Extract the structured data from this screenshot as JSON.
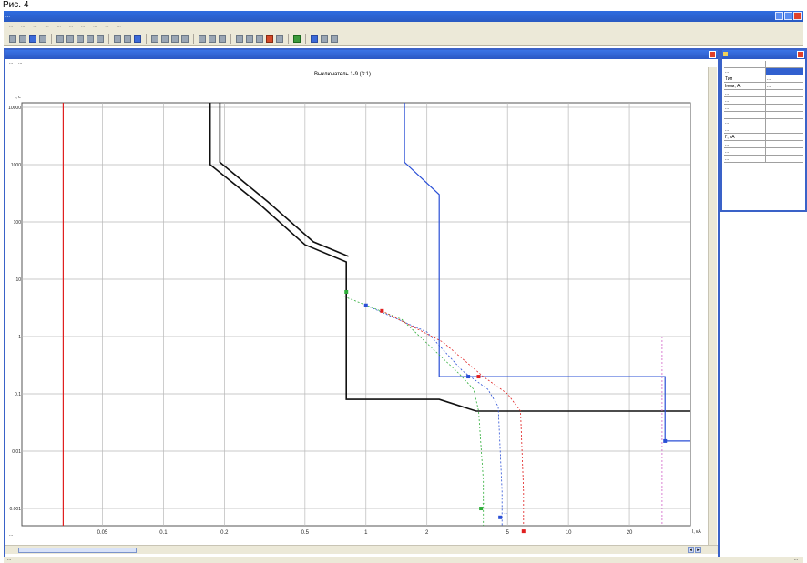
{
  "figure_caption": "Рис. 4",
  "app": {
    "title": "...",
    "menu": [
      "...",
      "...",
      "...",
      "...",
      "...",
      "...",
      "...",
      "...",
      "...",
      "..."
    ],
    "status_left": "...",
    "status_right": "..."
  },
  "chart_window": {
    "title": "...",
    "menu": [
      "...",
      "..."
    ],
    "status": "..."
  },
  "side_panel": {
    "title": "...",
    "rows": [
      {
        "key": "...",
        "value": "..."
      },
      {
        "key": "...",
        "value": ""
      },
      {
        "key": "Тип",
        "value": "..."
      },
      {
        "key": "Iном, А",
        "value": "..."
      },
      {
        "key": "...",
        "value": ""
      },
      {
        "key": "...",
        "value": ""
      },
      {
        "key": "...",
        "value": ""
      },
      {
        "key": "...",
        "value": ""
      },
      {
        "key": "...",
        "value": ""
      },
      {
        "key": "...",
        "value": ""
      },
      {
        "key": "I', кА",
        "value": ""
      },
      {
        "key": "...",
        "value": ""
      },
      {
        "key": "...",
        "value": ""
      },
      {
        "key": "...",
        "value": ""
      }
    ]
  },
  "colors": {
    "window_blue": "#2f63d6",
    "curve_black": "#111111",
    "curve_blue": "#2a4fd6",
    "curve_red": "#e02020",
    "curve_green": "#2fae3a",
    "curve_magenta": "#d060c8"
  },
  "chart_data": {
    "type": "line",
    "title": "Выключатель 1-9 (3:1)",
    "xlabel": "I, кА",
    "ylabel": "t, с",
    "x_scale": "log",
    "y_scale": "log",
    "xlim": [
      0.02,
      40
    ],
    "ylim": [
      0.0005,
      12000
    ],
    "x_ticks": [
      {
        "v": 0.05,
        "label": "0.05"
      },
      {
        "v": 0.1,
        "label": "0.1"
      },
      {
        "v": 0.2,
        "label": "0.2"
      },
      {
        "v": 0.5,
        "label": "0.5"
      },
      {
        "v": 1,
        "label": "1"
      },
      {
        "v": 2,
        "label": "2"
      },
      {
        "v": 5,
        "label": "5"
      },
      {
        "v": 10,
        "label": "10"
      },
      {
        "v": 20,
        "label": "20"
      }
    ],
    "y_ticks": [
      {
        "v": 10000,
        "label": "10000"
      },
      {
        "v": 1000,
        "label": "1000"
      },
      {
        "v": 100,
        "label": "100"
      },
      {
        "v": 10,
        "label": "10"
      },
      {
        "v": 1,
        "label": "1"
      },
      {
        "v": 0.1,
        "label": "0.1"
      },
      {
        "v": 0.01,
        "label": "0.01"
      },
      {
        "v": 0.001,
        "label": "0.001"
      }
    ],
    "grid": true,
    "series": [
      {
        "color": "#111111",
        "width": 1.6,
        "points": [
          [
            0.17,
            12000
          ],
          [
            0.17,
            1000
          ],
          [
            0.3,
            200
          ],
          [
            0.5,
            40
          ],
          [
            0.8,
            20
          ],
          [
            0.8,
            0.08
          ],
          [
            2.3,
            0.08
          ],
          [
            3.5,
            0.05
          ],
          [
            40,
            0.05
          ]
        ]
      },
      {
        "color": "#111111",
        "width": 1.6,
        "points": [
          [
            0.19,
            12000
          ],
          [
            0.19,
            1100
          ],
          [
            0.33,
            220
          ],
          [
            0.55,
            45
          ],
          [
            0.82,
            25
          ]
        ]
      },
      {
        "color": "#2a4fd6",
        "width": 1.2,
        "points": [
          [
            1.55,
            12000
          ],
          [
            1.55,
            1100
          ],
          [
            2.3,
            300
          ],
          [
            2.3,
            0.2
          ],
          [
            30,
            0.2
          ],
          [
            30,
            0.015
          ],
          [
            40,
            0.015
          ]
        ]
      },
      {
        "color": "#e02020",
        "width": 1.2,
        "points": [
          [
            0.032,
            12000
          ],
          [
            0.032,
            0.0005
          ]
        ]
      },
      {
        "color": "#d060c8",
        "width": 0.8,
        "dash": "2,2",
        "points": [
          [
            29,
            1
          ],
          [
            29,
            0.0005
          ]
        ]
      },
      {
        "color": "#2fae3a",
        "width": 0.8,
        "dash": "2,2",
        "points": [
          [
            0.78,
            5
          ],
          [
            1.5,
            2
          ],
          [
            2.9,
            0.22
          ],
          [
            3.4,
            0.12
          ],
          [
            3.6,
            0.05
          ],
          [
            3.8,
            0.003
          ],
          [
            3.8,
            0.0005
          ]
        ]
      },
      {
        "color": "#2a4fd6",
        "width": 0.8,
        "dash": "2,2",
        "points": [
          [
            1,
            3.5
          ],
          [
            2,
            1.2
          ],
          [
            3,
            0.25
          ],
          [
            4,
            0.12
          ],
          [
            4.5,
            0.06
          ],
          [
            4.7,
            0.002
          ],
          [
            4.7,
            0.0005
          ]
        ]
      },
      {
        "color": "#e02020",
        "width": 0.8,
        "dash": "2,2",
        "points": [
          [
            1.2,
            2.8
          ],
          [
            2.4,
            0.8
          ],
          [
            3.8,
            0.2
          ],
          [
            5,
            0.1
          ],
          [
            5.8,
            0.05
          ],
          [
            6,
            0.002
          ],
          [
            6,
            0.0005
          ]
        ]
      }
    ],
    "markers": [
      {
        "x": 0.8,
        "y": 6,
        "color": "#2fae3a"
      },
      {
        "x": 1,
        "y": 3.5,
        "color": "#2a4fd6"
      },
      {
        "x": 1.2,
        "y": 2.8,
        "color": "#e02020"
      },
      {
        "x": 3.2,
        "y": 0.2,
        "color": "#2a4fd6"
      },
      {
        "x": 3.6,
        "y": 0.2,
        "color": "#e02020"
      },
      {
        "x": 3.7,
        "y": 0.001,
        "color": "#2fae3a"
      },
      {
        "x": 4.6,
        "y": 0.0007,
        "color": "#2a4fd6"
      },
      {
        "x": 6,
        "y": 0.0004,
        "color": "#e02020"
      },
      {
        "x": 30,
        "y": 0.015,
        "color": "#2a4fd6"
      }
    ],
    "annotations": [
      {
        "x": 3.75,
        "y": 0.0012,
        "text": "...",
        "color": "#2fae3a"
      },
      {
        "x": 4.8,
        "y": 0.0008,
        "text": "...",
        "color": "#2a4fd6"
      },
      {
        "x": 6.1,
        "y": 0.00045,
        "text": "...",
        "color": "#e02020"
      }
    ]
  }
}
